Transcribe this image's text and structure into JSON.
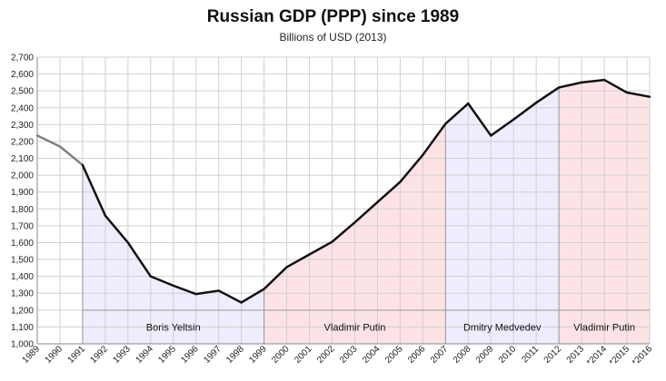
{
  "chart_data": {
    "type": "line",
    "title": "Russian GDP (PPP) since 1989",
    "subtitle": "Billions of USD (2013)",
    "xlabel": "",
    "ylabel": "",
    "ylim": [
      1000,
      2700
    ],
    "y_ticks": [
      "1,000",
      "1,100",
      "1,200",
      "1,300",
      "1,400",
      "1,500",
      "1,600",
      "1,700",
      "1,800",
      "1,900",
      "2,000",
      "2,100",
      "2,200",
      "2,300",
      "2,400",
      "2,500",
      "2,600",
      "2,700"
    ],
    "x_labels": [
      "1989",
      "1990",
      "1991",
      "1992",
      "1993",
      "1994",
      "1995",
      "1996",
      "1997",
      "1998",
      "1999",
      "2000",
      "2001",
      "2002",
      "2003",
      "2004",
      "2005",
      "2006",
      "2007",
      "2008",
      "2009",
      "2010",
      "2011",
      "2012",
      "2013",
      "*2014",
      "*2015",
      "*2016"
    ],
    "x": [
      1989,
      1990,
      1991,
      1992,
      1993,
      1994,
      1995,
      1996,
      1997,
      1998,
      1999,
      2000,
      2001,
      2002,
      2003,
      2004,
      2005,
      2006,
      2007,
      2008,
      2009,
      2010,
      2011,
      2012,
      2013,
      2014,
      2015,
      2016
    ],
    "series": [
      {
        "values": [
          2235,
          2170,
          2060,
          1760,
          1600,
          1400,
          1345,
          1295,
          1315,
          1245,
          1325,
          1455,
          1530,
          1605,
          1720,
          1840,
          1960,
          2120,
          2305,
          2425,
          2235,
          2330,
          2430,
          2520,
          2550,
          2565,
          2490,
          2465
        ]
      }
    ],
    "periods": [
      {
        "label": "Boris Yeltsin",
        "start": 1991,
        "end": 1999,
        "color": "#ededfd"
      },
      {
        "label": "Vladimir Putin",
        "start": 1999,
        "end": 2007,
        "color": "#fde3e5"
      },
      {
        "label": "Dmitry Medvedev",
        "start": 2007,
        "end": 2012,
        "color": "#ededfd"
      },
      {
        "label": "Vladimir Putin",
        "start": 2012,
        "end": 2016,
        "color": "#fde3e5"
      }
    ],
    "grid": true,
    "colors": {
      "line": "#111111",
      "pre_period_line": "#808080",
      "grid": "#d0d0d0"
    }
  }
}
